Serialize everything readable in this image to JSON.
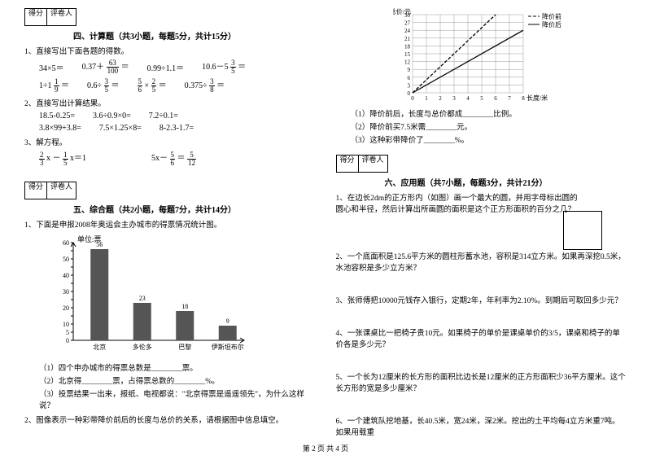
{
  "footer": "第 2 页 共 4 页",
  "left": {
    "score_labels": [
      "得分",
      "评卷人"
    ],
    "section4": {
      "title": "四、计算题（共3小题，每题5分，共计15分）",
      "q1": "1、直接写出下面各题的得数。",
      "row1": [
        "34×5＝",
        "0.37＋",
        "63",
        "100",
        "＝",
        "0.99÷1.1＝",
        "10.6－5",
        "3",
        "5",
        "＝"
      ],
      "row2": [
        "1÷1",
        "1",
        "9",
        "＝",
        "0.6÷",
        "3",
        "5",
        "＝",
        "5",
        "6",
        "×",
        "2",
        "5",
        "＝",
        "0.375÷",
        "3",
        "8",
        "＝"
      ],
      "q2": "2、直接写出计算结果。",
      "r2a": [
        "18.5-0.25=",
        "3.6÷0.9×0=",
        "7.2÷0.1="
      ],
      "r2b": [
        "3.8×99+3.8=",
        "7.5×1.25×8=",
        "8-2.3-1.7="
      ],
      "q3": "3、解方程。",
      "r3": [
        "2",
        "3",
        " x －",
        "1",
        "5",
        " x＝1",
        "5x－",
        "5",
        "6",
        "＝",
        "5",
        "12"
      ]
    },
    "section5": {
      "title": "五、综合题（共2小题，每题7分，共计14分）",
      "q1": "1、下面是申报2008年奥运会主办城市的得票情况统计图。",
      "chart": {
        "unit": "单位:票",
        "y_max": 60,
        "y_ticks": [
          0,
          5,
          10,
          15,
          20,
          25,
          30,
          35,
          40,
          45,
          50,
          55,
          60
        ],
        "bars": [
          {
            "label": "北京",
            "value": 56
          },
          {
            "label": "多伦多",
            "value": 23
          },
          {
            "label": "巴黎",
            "value": 18
          },
          {
            "label": "伊斯坦布尔",
            "value": 9
          }
        ],
        "bar_color": "#555555",
        "bg": "#ffffff"
      },
      "subs": [
        "（1）四个申办城市的得票总数是________票。",
        "（2）北京得________票，占得票总数的________%。",
        "（3）投票结果一出来，报纸、电视都说：\"北京得票是遥遥领先\"，为什么这样说？"
      ],
      "q2": "2、图像表示一种彩带降价前后的长度与总价的关系，请根据图中信息填空。"
    }
  },
  "right": {
    "line_graph": {
      "x_label": "长度/米",
      "y_label": "总价/元",
      "y_max": 30,
      "x_max": 8,
      "x_ticks": [
        0,
        1,
        2,
        3,
        4,
        5,
        6,
        7,
        8
      ],
      "y_ticks": [
        3,
        6,
        9,
        12,
        15,
        18,
        21,
        24,
        27,
        30
      ],
      "legend": [
        "降价前",
        "降价后"
      ],
      "series_before": {
        "slope": 5
      },
      "series_after": {
        "slope": 3
      },
      "line_dash_before": "4,2",
      "line_solid_after": ""
    },
    "graph_subs": [
      "（1）降价前后，长度与总价都成________比例。",
      "（2）降价前买7.5米需________元。",
      "（3）这种彩带降价了________%。"
    ],
    "score_labels": [
      "得分",
      "评卷人"
    ],
    "section6": {
      "title": "六、应用题（共7小题，每题3分，共计21分）",
      "q1": "1、在边长2dm的正方形内（如图）画一个最大的圆，并用字母标出圆的圆心和半径，然后计算出所画圆的面积是这个正方形面积的百分之几？",
      "q2": "2、一个底面积是125.6平方米的圆柱形蓄水池，容积是314立方米。如果再深挖0.5米，水池容积是多少立方米？",
      "q3": "3、张师傅把10000元钱存入银行，定期2年，年利率为2.10%。到期后可取回多少元？",
      "q4": "4、一张课桌比一把椅子贵10元。如果椅子的单价是课桌单价的3/5，课桌和椅子的单价各是多少元？",
      "q5": "5、一个长为12厘米的长方形的面积比边长是12厘米的正方形面积少36平方厘米。这个长方形的宽是多少厘米？",
      "q6": "6、一个建筑队挖地基，长40.5米，宽24米，深2米。挖出的土平均每4立方米重7吨。如果用载重"
    }
  }
}
